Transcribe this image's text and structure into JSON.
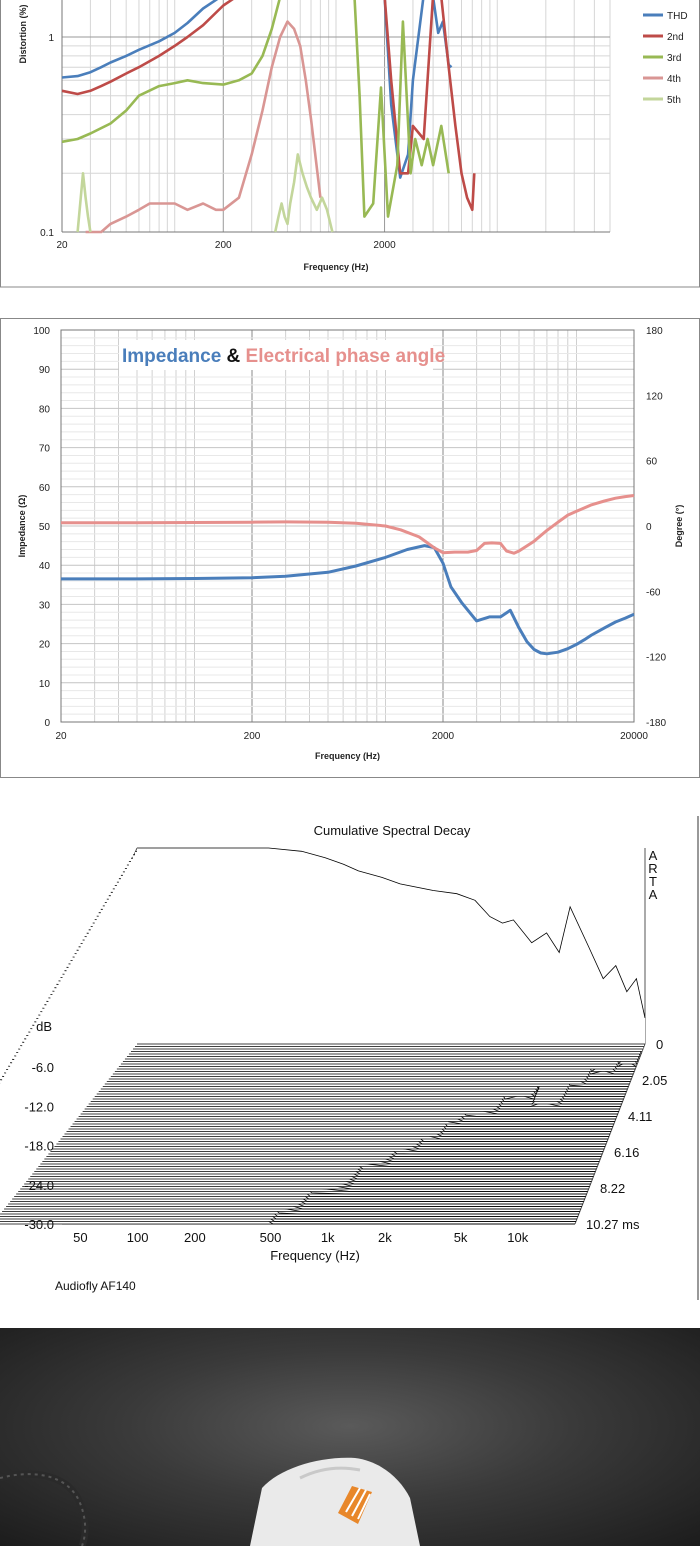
{
  "chart_data": [
    {
      "type": "line",
      "title": "",
      "xlabel": "Frequency (Hz)",
      "ylabel": "Distortion (%)",
      "x_scale": "log",
      "y_scale": "log",
      "xlim": [
        20,
        50000
      ],
      "ylim": [
        0.1,
        10
      ],
      "x_ticks": [
        "20",
        "200",
        "2000"
      ],
      "x_tick_values": [
        20,
        200,
        2000
      ],
      "y_ticks": [
        "0.1",
        "1"
      ],
      "y_tick_values": [
        0.1,
        1
      ],
      "legend_position": "top-right",
      "series": [
        {
          "name": "THD",
          "color": "#4a7ebb",
          "x": [
            20,
            25,
            30,
            35,
            40,
            50,
            60,
            80,
            100,
            120,
            150,
            200,
            250,
            300,
            320
          ],
          "y": [
            0.62,
            0.63,
            0.66,
            0.7,
            0.74,
            0.8,
            0.86,
            0.95,
            1.05,
            1.18,
            1.4,
            1.75,
            1.95,
            2.25,
            2.6
          ]
        },
        {
          "name": "THD",
          "color": "#4a7ebb",
          "x": [
            2000,
            2200,
            2500,
            2800,
            3000,
            3500,
            3800,
            4000,
            4300,
            4600,
            5000,
            5200
          ],
          "y": [
            2.5,
            0.45,
            0.19,
            0.25,
            0.6,
            1.8,
            4.2,
            1.6,
            1.05,
            1.2,
            0.72,
            0.7
          ]
        },
        {
          "name": "2nd",
          "color": "#be4b48",
          "x": [
            20,
            25,
            30,
            35,
            40,
            50,
            60,
            80,
            100,
            120,
            150,
            200,
            250,
            300,
            320
          ],
          "y": [
            0.53,
            0.51,
            0.53,
            0.56,
            0.59,
            0.65,
            0.7,
            0.8,
            0.9,
            1.0,
            1.15,
            1.45,
            1.75,
            2.1,
            2.5
          ]
        },
        {
          "name": "2nd",
          "color": "#be4b48",
          "x": [
            2000,
            2200,
            2500,
            2800,
            3000,
            3500,
            4000,
            4500,
            5000,
            5500,
            6000,
            6500,
            7000,
            7200
          ],
          "y": [
            2.5,
            0.6,
            0.2,
            0.2,
            0.35,
            0.3,
            4.5,
            1.6,
            0.7,
            0.35,
            0.2,
            0.15,
            0.13,
            0.2
          ]
        },
        {
          "name": "3rd",
          "color": "#98b954",
          "x": [
            20,
            25,
            30,
            40,
            50,
            60,
            80,
            100,
            120,
            150,
            200,
            250,
            300,
            350,
            400,
            450,
            500
          ],
          "y": [
            0.29,
            0.3,
            0.32,
            0.36,
            0.42,
            0.5,
            0.56,
            0.58,
            0.6,
            0.58,
            0.57,
            0.6,
            0.65,
            0.8,
            1.1,
            1.6,
            2.5
          ]
        },
        {
          "name": "3rd",
          "color": "#98b954",
          "x": [
            1300,
            1400,
            1500,
            1700,
            1900,
            2100,
            2400,
            2600,
            2900,
            3100,
            3400,
            3700,
            4000,
            4500,
            5000
          ],
          "y": [
            2.5,
            0.5,
            0.12,
            0.14,
            0.55,
            0.12,
            0.22,
            1.2,
            0.2,
            0.3,
            0.22,
            0.3,
            0.22,
            0.35,
            0.2
          ]
        },
        {
          "name": "4th",
          "color": "#d99694",
          "x": [
            28,
            30,
            35,
            40,
            50,
            60,
            70,
            80,
            100,
            120,
            150,
            180,
            200,
            250,
            300,
            350,
            400,
            450,
            500,
            550,
            600,
            650,
            700,
            800
          ],
          "y": [
            0.1,
            0.1,
            0.1,
            0.11,
            0.12,
            0.13,
            0.14,
            0.14,
            0.14,
            0.13,
            0.14,
            0.13,
            0.13,
            0.15,
            0.25,
            0.42,
            0.7,
            1.0,
            1.2,
            1.1,
            0.9,
            0.6,
            0.38,
            0.15
          ]
        },
        {
          "name": "5th",
          "color": "#c3d69b",
          "x": [
            25,
            27,
            28,
            29,
            30
          ],
          "y": [
            0.1,
            0.2,
            0.15,
            0.12,
            0.1
          ]
        },
        {
          "name": "5th",
          "color": "#c3d69b",
          "x": [
            420,
            440,
            460,
            480,
            500,
            520,
            550,
            580,
            620,
            660,
            700,
            760,
            820,
            880,
            950
          ],
          "y": [
            0.1,
            0.12,
            0.14,
            0.12,
            0.11,
            0.14,
            0.18,
            0.25,
            0.2,
            0.17,
            0.15,
            0.13,
            0.15,
            0.13,
            0.1
          ]
        }
      ]
    },
    {
      "type": "line",
      "title": "Impedance & Electrical phase angle",
      "title_parts": [
        "Impedance",
        "&",
        "Electrical phase angle"
      ],
      "xlabel": "Frequency (Hz)",
      "ylabel": "Impedance (Ω)",
      "y2label": "Degree (°)",
      "x_scale": "log",
      "xlim": [
        20,
        20000
      ],
      "ylim": [
        0,
        100
      ],
      "y2lim": [
        -180,
        180
      ],
      "x_ticks": [
        "20",
        "200",
        "2000",
        "20000"
      ],
      "x_tick_values": [
        20,
        200,
        2000,
        20000
      ],
      "y_ticks": [
        "0",
        "10",
        "20",
        "30",
        "40",
        "50",
        "60",
        "70",
        "80",
        "90",
        "100"
      ],
      "y_tick_values": [
        0,
        10,
        20,
        30,
        40,
        50,
        60,
        70,
        80,
        90,
        100
      ],
      "y2_ticks": [
        "-180",
        "-120",
        "-60",
        "0",
        "60",
        "120",
        "180"
      ],
      "y2_tick_values": [
        -180,
        -120,
        -60,
        0,
        60,
        120,
        180
      ],
      "series": [
        {
          "name": "Impedance",
          "axis": "left",
          "color": "#4a7ebb",
          "x": [
            20,
            50,
            100,
            200,
            300,
            500,
            700,
            1000,
            1300,
            1600,
            1800,
            2000,
            2200,
            2500,
            3000,
            3500,
            4000,
            4500,
            5000,
            5500,
            6000,
            6500,
            7000,
            8000,
            9000,
            10000,
            11000,
            12000,
            14000,
            16000,
            18000,
            20000
          ],
          "y": [
            36.5,
            36.5,
            36.6,
            36.8,
            37.2,
            38.2,
            39.8,
            42.0,
            44.0,
            45.0,
            44.5,
            40.5,
            34.5,
            30.5,
            25.8,
            26.8,
            26.8,
            28.5,
            24.0,
            20.5,
            18.5,
            17.6,
            17.4,
            17.8,
            18.7,
            19.8,
            21.0,
            22.2,
            24.0,
            25.5,
            26.5,
            27.5
          ]
        },
        {
          "name": "Electrical phase angle",
          "axis": "right",
          "color": "#e6908d",
          "x": [
            20,
            50,
            100,
            200,
            300,
            500,
            700,
            1000,
            1200,
            1500,
            1800,
            2000,
            2300,
            2700,
            3000,
            3300,
            3600,
            4000,
            4300,
            4700,
            5000,
            6000,
            7000,
            8000,
            9000,
            10000,
            12000,
            14000,
            16000,
            18000,
            20000
          ],
          "y": [
            3.0,
            3.0,
            3.2,
            3.5,
            3.8,
            3.5,
            2.5,
            0.0,
            -3.5,
            -10,
            -20,
            -24.5,
            -24,
            -24,
            -22.5,
            -16,
            -15.5,
            -16,
            -23,
            -25,
            -23,
            -14,
            -4,
            3.5,
            10,
            13.5,
            19.5,
            23,
            25.5,
            27,
            28
          ]
        }
      ]
    },
    {
      "type": "waterfall",
      "title": "Cumulative Spectral Decay",
      "xlabel": "Frequency (Hz)",
      "ylabel": "dB",
      "zlabel": "ms",
      "software_label": "ARTA",
      "caption": "Audiofly AF140",
      "x_scale": "log",
      "xlim": [
        40,
        20000
      ],
      "ylim": [
        -30,
        0
      ],
      "x_ticks": [
        "50",
        "100",
        "200",
        "500",
        "1k",
        "2k",
        "5k",
        "10k"
      ],
      "x_tick_values": [
        50,
        100,
        200,
        500,
        1000,
        2000,
        5000,
        10000
      ],
      "y_ticks": [
        "-30.0",
        "-24.0",
        "-18.0",
        "-12.0",
        "-6.0"
      ],
      "y_tick_values": [
        -30,
        -24,
        -18,
        -12,
        -6
      ],
      "time_ticks": [
        "0",
        "2.05",
        "4.11",
        "6.16",
        "8.22",
        "10.27 ms"
      ],
      "time_tick_values": [
        0,
        2.05,
        4.11,
        6.16,
        8.22,
        10.27
      ],
      "first_slice_db": {
        "x": [
          40,
          50,
          80,
          100,
          150,
          200,
          300,
          400,
          500,
          600,
          800,
          1000,
          1500,
          2000,
          2500,
          3000,
          3500,
          4000,
          5000,
          6000,
          7000,
          8000,
          10000,
          12000,
          14000,
          16000,
          18000,
          20000
        ],
        "y": [
          0,
          0,
          0,
          0,
          0,
          0,
          -0.5,
          -1.5,
          -2.5,
          -3.5,
          -4.5,
          -5.5,
          -6.5,
          -7.0,
          -8.0,
          -10.5,
          -11.5,
          -11.0,
          -14.5,
          -13.0,
          -16.0,
          -9.0,
          -15.0,
          -20.0,
          -18.0,
          -22.0,
          -20.0,
          -26.0
        ]
      }
    }
  ]
}
